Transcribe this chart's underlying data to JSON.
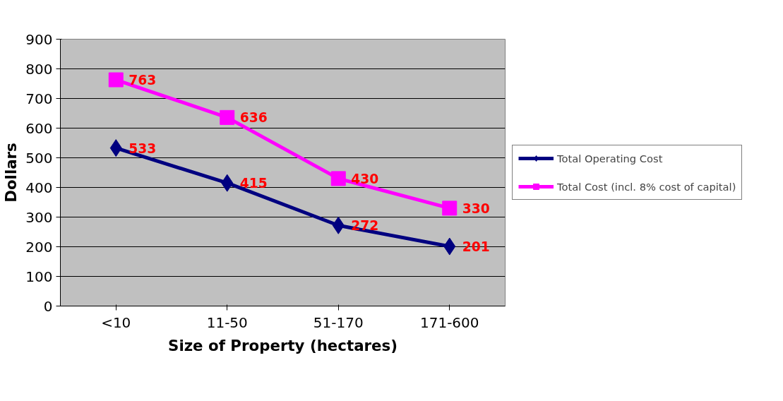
{
  "chart_data": {
    "type": "line",
    "xlabel": "Size of Property (hectares)",
    "ylabel": "Dollars",
    "categories": [
      "<10",
      "11-50",
      "51-170",
      "171-600"
    ],
    "series": [
      {
        "name": "Total Operating Cost",
        "color": "#000080",
        "marker": "diamond",
        "values": [
          533,
          415,
          272,
          201
        ]
      },
      {
        "name": "Total Cost (incl. 8% cost of capital)",
        "color": "#ff00ff",
        "marker": "square",
        "values": [
          763,
          636,
          430,
          330
        ]
      }
    ],
    "ylim": [
      0,
      900
    ],
    "yticks": [
      0,
      100,
      200,
      300,
      400,
      500,
      600,
      700,
      800,
      900
    ],
    "grid": "y",
    "legend": "right",
    "data_labels": true
  }
}
